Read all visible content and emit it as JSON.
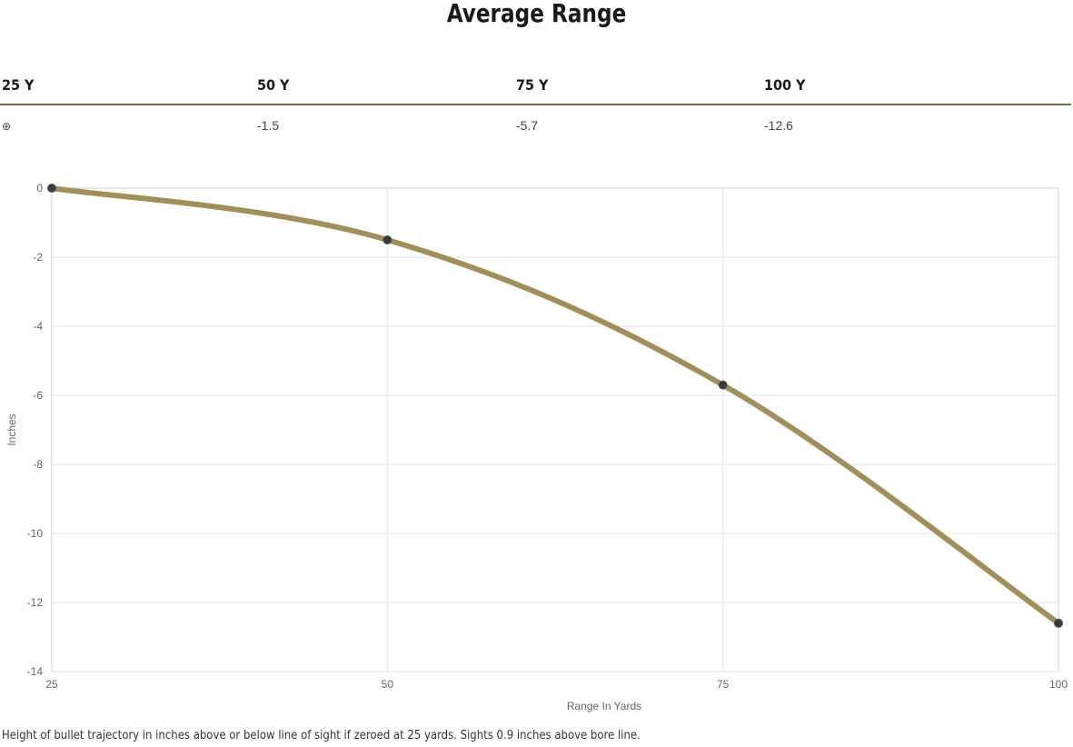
{
  "title": "Average Range",
  "table": {
    "headers": [
      "25 Y",
      "50 Y",
      "75 Y",
      "100 Y"
    ],
    "values": [
      "⊕",
      "-1.5",
      "-5.7",
      "-12.6"
    ]
  },
  "chart_data": {
    "type": "line",
    "x": [
      25,
      50,
      75,
      100
    ],
    "series": [
      {
        "values": [
          0,
          -1.5,
          -5.7,
          -12.6
        ]
      }
    ],
    "xlabel": "Range In Yards",
    "ylabel": "Inches",
    "xticks": [
      "25",
      "50",
      "75",
      "100"
    ],
    "yticks": [
      "0",
      "-2",
      "-4",
      "-6",
      "-8",
      "-10",
      "-12",
      "-14"
    ],
    "xlim": [
      25,
      100
    ],
    "ylim": [
      -14,
      0
    ],
    "grid": true,
    "line_color": "#a08f5a",
    "point_color": "#3a3a3a"
  },
  "footnote": "Height of bullet trajectory in inches above or below line of sight if zeroed at 25 yards. Sights 0.9 inches above bore line."
}
